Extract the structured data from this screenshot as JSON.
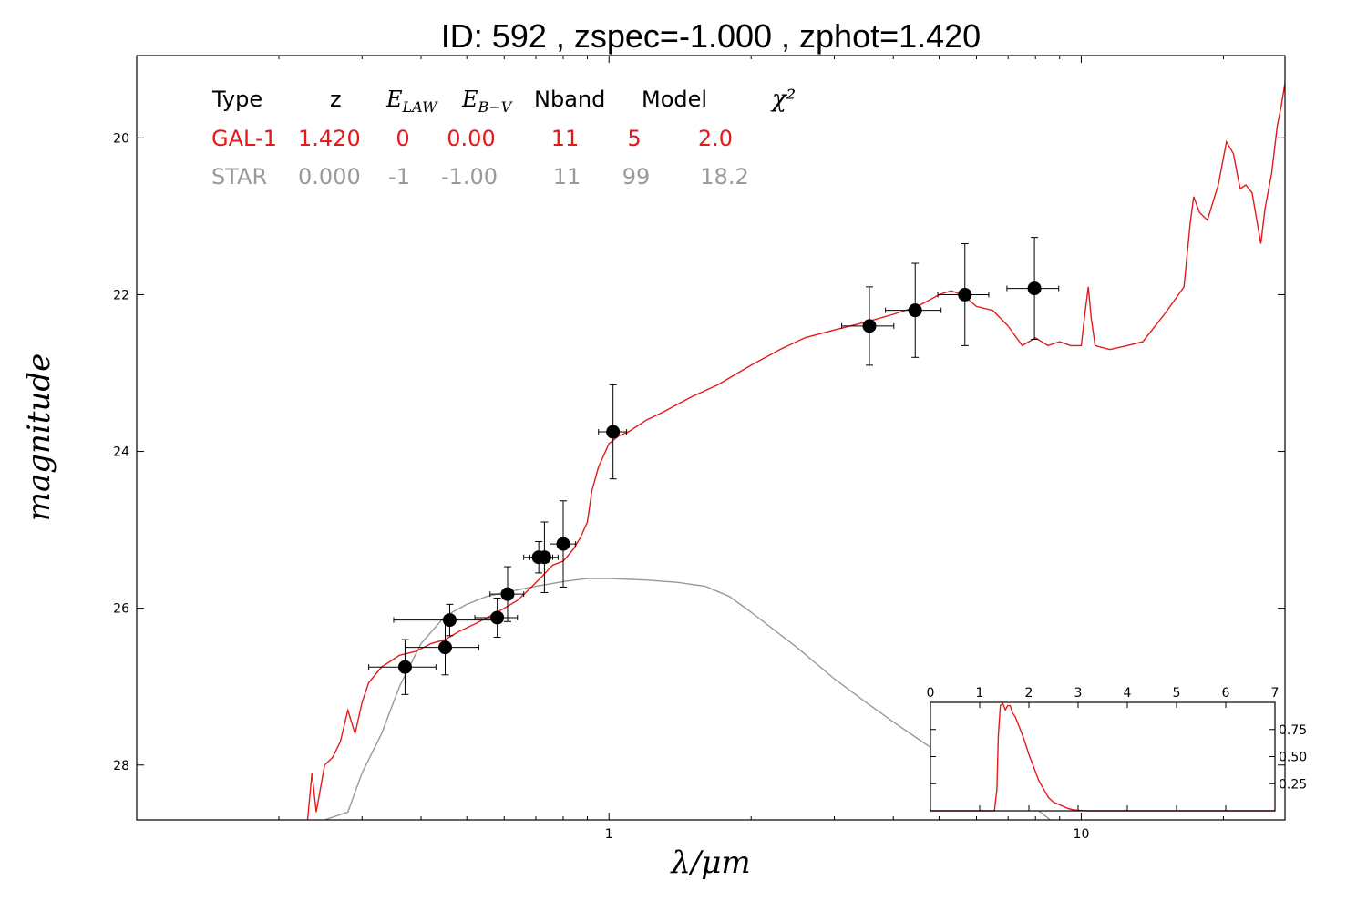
{
  "chart_data": [
    {
      "type": "line",
      "title": "ID:  592   , zspec=-1.000 , zphot=1.420",
      "xlabel": "λ/μm",
      "ylabel": "magnitude",
      "x_scale": "log",
      "xlim": [
        0.1,
        27
      ],
      "ylim": [
        28.7,
        18.95
      ],
      "x_tick_labels": [
        {
          "value": 1,
          "label": "1"
        },
        {
          "value": 10,
          "label": "10"
        }
      ],
      "y_tick_labels": [
        {
          "value": 20,
          "label": "20"
        },
        {
          "value": 22,
          "label": "22"
        },
        {
          "value": 24,
          "label": "24"
        },
        {
          "value": 26,
          "label": "26"
        },
        {
          "value": 28,
          "label": "28"
        }
      ],
      "legend_table": {
        "headers": [
          "Type",
          "z",
          "E_LAW",
          "E_B-V",
          "Nband",
          "Model",
          "χ²"
        ],
        "rows": [
          {
            "cells": [
              "GAL-1",
              "1.420",
              "0",
              "0.00",
              "11",
              "5",
              "2.0"
            ],
            "color": "#e31a1c"
          },
          {
            "cells": [
              "STAR",
              "0.000",
              "-1",
              "-1.00",
              "11",
              "99",
              "18.2"
            ],
            "color": "#999999"
          }
        ]
      },
      "series": [
        {
          "color": "#e31a1c",
          "points": [
            [
              0.23,
              28.7
            ],
            [
              0.235,
              28.1
            ],
            [
              0.24,
              28.6
            ],
            [
              0.25,
              28.0
            ],
            [
              0.26,
              27.9
            ],
            [
              0.27,
              27.7
            ],
            [
              0.28,
              27.3
            ],
            [
              0.29,
              27.6
            ],
            [
              0.3,
              27.2
            ],
            [
              0.31,
              26.95
            ],
            [
              0.33,
              26.75
            ],
            [
              0.36,
              26.6
            ],
            [
              0.39,
              26.55
            ],
            [
              0.42,
              26.45
            ],
            [
              0.45,
              26.4
            ],
            [
              0.48,
              26.3
            ],
            [
              0.52,
              26.2
            ],
            [
              0.56,
              26.1
            ],
            [
              0.6,
              26.0
            ],
            [
              0.64,
              25.9
            ],
            [
              0.68,
              25.75
            ],
            [
              0.72,
              25.6
            ],
            [
              0.76,
              25.45
            ],
            [
              0.8,
              25.4
            ],
            [
              0.84,
              25.25
            ],
            [
              0.87,
              25.1
            ],
            [
              0.9,
              24.9
            ],
            [
              0.92,
              24.5
            ],
            [
              0.95,
              24.2
            ],
            [
              1.0,
              23.9
            ],
            [
              1.05,
              23.8
            ],
            [
              1.1,
              23.75
            ],
            [
              1.2,
              23.6
            ],
            [
              1.3,
              23.5
            ],
            [
              1.5,
              23.3
            ],
            [
              1.7,
              23.15
            ],
            [
              2.0,
              22.9
            ],
            [
              2.3,
              22.7
            ],
            [
              2.6,
              22.55
            ],
            [
              3.0,
              22.45
            ],
            [
              3.5,
              22.35
            ],
            [
              4.0,
              22.25
            ],
            [
              4.5,
              22.15
            ],
            [
              5.0,
              22.0
            ],
            [
              5.3,
              21.95
            ],
            [
              5.6,
              22.0
            ],
            [
              6.0,
              22.15
            ],
            [
              6.5,
              22.2
            ],
            [
              7.0,
              22.4
            ],
            [
              7.5,
              22.65
            ],
            [
              8.0,
              22.55
            ],
            [
              8.5,
              22.65
            ],
            [
              9.0,
              22.6
            ],
            [
              9.5,
              22.65
            ],
            [
              10.0,
              22.65
            ],
            [
              10.2,
              22.2
            ],
            [
              10.35,
              21.9
            ],
            [
              10.5,
              22.3
            ],
            [
              10.7,
              22.65
            ],
            [
              11.5,
              22.7
            ],
            [
              12.5,
              22.65
            ],
            [
              13.5,
              22.6
            ],
            [
              15.0,
              22.25
            ],
            [
              16.5,
              21.9
            ],
            [
              17.0,
              21.1
            ],
            [
              17.3,
              20.75
            ],
            [
              17.8,
              20.95
            ],
            [
              18.5,
              21.05
            ],
            [
              19.5,
              20.6
            ],
            [
              20.3,
              20.05
            ],
            [
              21.0,
              20.2
            ],
            [
              21.7,
              20.65
            ],
            [
              22.3,
              20.6
            ],
            [
              23.0,
              20.7
            ],
            [
              24.0,
              21.35
            ],
            [
              24.5,
              20.9
            ],
            [
              25.3,
              20.45
            ],
            [
              26.0,
              19.85
            ],
            [
              26.5,
              19.6
            ],
            [
              27.0,
              19.3
            ]
          ]
        },
        {
          "color": "#999999",
          "points": [
            [
              0.25,
              28.7
            ],
            [
              0.28,
              28.6
            ],
            [
              0.3,
              28.1
            ],
            [
              0.33,
              27.6
            ],
            [
              0.36,
              27.0
            ],
            [
              0.4,
              26.45
            ],
            [
              0.45,
              26.1
            ],
            [
              0.5,
              25.95
            ],
            [
              0.55,
              25.85
            ],
            [
              0.6,
              25.8
            ],
            [
              0.7,
              25.72
            ],
            [
              0.8,
              25.66
            ],
            [
              0.9,
              25.62
            ],
            [
              1.0,
              25.62
            ],
            [
              1.2,
              25.64
            ],
            [
              1.4,
              25.67
            ],
            [
              1.6,
              25.72
            ],
            [
              1.8,
              25.85
            ],
            [
              2.0,
              26.05
            ],
            [
              2.5,
              26.5
            ],
            [
              3.0,
              26.9
            ],
            [
              3.5,
              27.2
            ],
            [
              4.0,
              27.45
            ],
            [
              5.0,
              27.85
            ],
            [
              6.0,
              28.15
            ],
            [
              7.0,
              28.35
            ],
            [
              8.0,
              28.55
            ],
            [
              8.6,
              28.7
            ]
          ]
        }
      ],
      "photometry": {
        "color": "#000000",
        "x": [
          0.37,
          0.45,
          0.46,
          0.58,
          0.61,
          0.71,
          0.73,
          0.8,
          1.02,
          3.56,
          4.45,
          5.67,
          7.96
        ],
        "y": [
          26.75,
          26.5,
          26.15,
          26.12,
          25.82,
          25.35,
          25.35,
          25.18,
          23.75,
          22.4,
          22.2,
          22.0,
          21.92
        ],
        "yerr": [
          0.35,
          0.35,
          0.2,
          0.25,
          0.35,
          0.2,
          0.45,
          0.55,
          0.6,
          0.5,
          0.6,
          0.65,
          0.65
        ],
        "xerr": [
          0.06,
          0.08,
          0.11,
          0.06,
          0.05,
          0.05,
          0.05,
          0.05,
          0.07,
          0.45,
          0.6,
          0.7,
          1.0
        ]
      }
    },
    {
      "type": "line",
      "title": "",
      "xlim": [
        0,
        7
      ],
      "ylim": [
        0,
        1
      ],
      "x_tick_labels": [
        "0",
        "1",
        "2",
        "3",
        "4",
        "5",
        "6",
        "7"
      ],
      "y_tick_labels": [
        {
          "value": 0.25,
          "label": "0.25"
        },
        {
          "value": 0.5,
          "label": "0.50"
        },
        {
          "value": 0.75,
          "label": "0.75"
        }
      ],
      "series": [
        {
          "color": "#e31a1c",
          "points": [
            [
              0,
              0
            ],
            [
              1.3,
              0
            ],
            [
              1.35,
              0.2
            ],
            [
              1.38,
              0.7
            ],
            [
              1.42,
              0.97
            ],
            [
              1.47,
              0.99
            ],
            [
              1.52,
              0.93
            ],
            [
              1.57,
              0.97
            ],
            [
              1.62,
              0.97
            ],
            [
              1.67,
              0.9
            ],
            [
              1.72,
              0.87
            ],
            [
              1.8,
              0.78
            ],
            [
              1.9,
              0.66
            ],
            [
              2.0,
              0.52
            ],
            [
              2.1,
              0.4
            ],
            [
              2.2,
              0.28
            ],
            [
              2.3,
              0.2
            ],
            [
              2.4,
              0.12
            ],
            [
              2.5,
              0.08
            ],
            [
              2.6,
              0.06
            ],
            [
              2.7,
              0.04
            ],
            [
              2.8,
              0.02
            ],
            [
              2.9,
              0.01
            ],
            [
              3.0,
              0.005
            ],
            [
              3.2,
              0
            ],
            [
              7,
              0
            ]
          ]
        }
      ]
    }
  ]
}
